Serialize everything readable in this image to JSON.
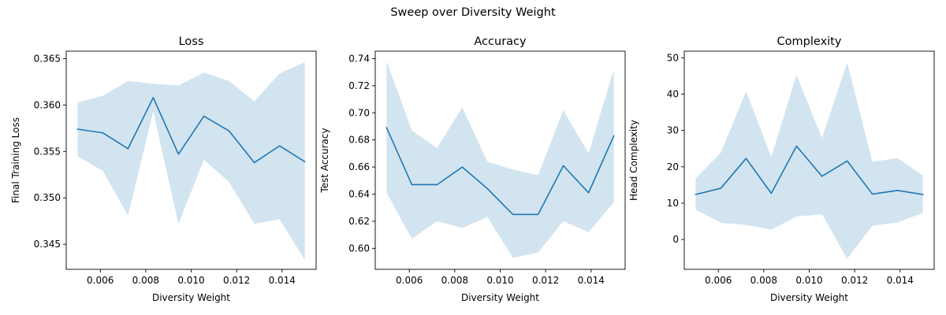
{
  "figure": {
    "suptitle": "Sweep over Diversity Weight"
  },
  "colors": {
    "line": "#1f77b4",
    "band": "#1f77b4",
    "axes": "#000000",
    "background": "#ffffff"
  },
  "chart_data": [
    {
      "type": "line",
      "title": "Loss",
      "xlabel": "Diversity Weight",
      "ylabel": "Final Training Loss",
      "grid": false,
      "xlim": [
        0.0045,
        0.0155
      ],
      "ylim": [
        0.3423,
        0.3658
      ],
      "xticks": [
        0.006,
        0.008,
        0.01,
        0.012,
        0.014
      ],
      "xtick_labels": [
        "0.006",
        "0.008",
        "0.010",
        "0.012",
        "0.014"
      ],
      "yticks": [
        0.345,
        0.35,
        0.355,
        0.36,
        0.365
      ],
      "ytick_labels": [
        "0.345",
        "0.350",
        "0.355",
        "0.360",
        "0.365"
      ],
      "x": [
        0.005,
        0.00611,
        0.00722,
        0.00833,
        0.00944,
        0.01056,
        0.01167,
        0.01278,
        0.01389,
        0.015
      ],
      "series": [
        {
          "values": [
            0.3574,
            0.357,
            0.3553,
            0.3608,
            0.3547,
            0.3588,
            0.3572,
            0.3538,
            0.3556,
            0.3539
          ],
          "upper": [
            0.3603,
            0.361,
            0.3626,
            0.3623,
            0.3621,
            0.3635,
            0.3626,
            0.3604,
            0.3634,
            0.3646
          ],
          "lower": [
            0.3545,
            0.3529,
            0.3481,
            0.3593,
            0.3472,
            0.3541,
            0.3517,
            0.3472,
            0.3477,
            0.3433
          ]
        }
      ]
    },
    {
      "type": "line",
      "title": "Accuracy",
      "xlabel": "Diversity Weight",
      "ylabel": "Test Accuracy",
      "grid": false,
      "xlim": [
        0.0045,
        0.0155
      ],
      "ylim": [
        0.5845,
        0.7455
      ],
      "xticks": [
        0.006,
        0.008,
        0.01,
        0.012,
        0.014
      ],
      "xtick_labels": [
        "0.006",
        "0.008",
        "0.010",
        "0.012",
        "0.014"
      ],
      "yticks": [
        0.6,
        0.62,
        0.64,
        0.66,
        0.68,
        0.7,
        0.72,
        0.74
      ],
      "ytick_labels": [
        "0.60",
        "0.62",
        "0.64",
        "0.66",
        "0.68",
        "0.70",
        "0.72",
        "0.74"
      ],
      "x": [
        0.005,
        0.00611,
        0.00722,
        0.00833,
        0.00944,
        0.01056,
        0.01167,
        0.01278,
        0.01389,
        0.015
      ],
      "series": [
        {
          "values": [
            0.689,
            0.647,
            0.647,
            0.66,
            0.644,
            0.625,
            0.625,
            0.661,
            0.641,
            0.683
          ],
          "upper": [
            0.738,
            0.687,
            0.674,
            0.704,
            0.664,
            0.658,
            0.654,
            0.702,
            0.67,
            0.732
          ],
          "lower": [
            0.641,
            0.607,
            0.62,
            0.615,
            0.623,
            0.593,
            0.597,
            0.62,
            0.612,
            0.634
          ]
        }
      ]
    },
    {
      "type": "line",
      "title": "Complexity",
      "xlabel": "Diversity Weight",
      "ylabel": "Head Complexity",
      "grid": false,
      "xlim": [
        0.0045,
        0.0155
      ],
      "ylim": [
        -8.2,
        51.8
      ],
      "xticks": [
        0.006,
        0.008,
        0.01,
        0.012,
        0.014
      ],
      "xtick_labels": [
        "0.006",
        "0.008",
        "0.010",
        "0.012",
        "0.014"
      ],
      "yticks": [
        0,
        10,
        20,
        30,
        40,
        50
      ],
      "ytick_labels": [
        "0",
        "10",
        "20",
        "30",
        "40",
        "50"
      ],
      "x": [
        0.005,
        0.00611,
        0.00722,
        0.00833,
        0.00944,
        0.01056,
        0.01167,
        0.01278,
        0.01389,
        0.015
      ],
      "series": [
        {
          "values": [
            12.4,
            14.1,
            22.3,
            12.7,
            25.7,
            17.4,
            21.6,
            12.5,
            13.5,
            12.4
          ],
          "upper": [
            16.8,
            23.9,
            40.8,
            22.7,
            45.3,
            27.9,
            48.6,
            21.4,
            22.4,
            17.6
          ],
          "lower": [
            8.2,
            4.6,
            4.0,
            2.7,
            6.3,
            7.0,
            -5.3,
            3.8,
            4.7,
            7.3
          ]
        }
      ]
    }
  ]
}
